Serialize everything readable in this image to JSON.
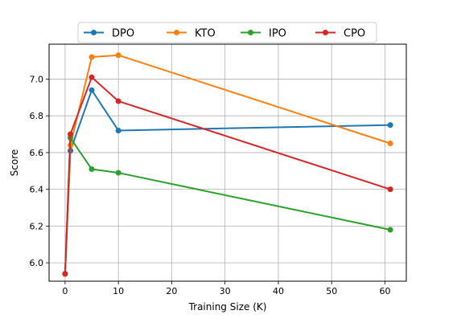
{
  "chart_data": {
    "type": "line",
    "xlabel": "Training Size (K)",
    "ylabel": "Score",
    "xlim": [
      -3,
      64
    ],
    "ylim": [
      5.9,
      7.19
    ],
    "xticks": [
      0,
      10,
      20,
      30,
      40,
      50,
      60
    ],
    "yticks": [
      6.0,
      6.2,
      6.4,
      6.6,
      6.8,
      7.0
    ],
    "xtick_labels": [
      "0",
      "10",
      "20",
      "30",
      "40",
      "50",
      "60"
    ],
    "ytick_labels": [
      "6.0",
      "6.2",
      "6.4",
      "6.6",
      "6.8",
      "7.0"
    ],
    "grid": true,
    "legend_position": "top-center",
    "x": [
      0,
      1,
      5,
      10,
      61
    ],
    "series": [
      {
        "name": "DPO",
        "color": "#1f77b4",
        "values": [
          5.94,
          6.61,
          6.94,
          6.72,
          6.75
        ]
      },
      {
        "name": "KTO",
        "color": "#ff7f0e",
        "values": [
          5.94,
          6.64,
          7.12,
          7.13,
          6.65
        ]
      },
      {
        "name": "IPO",
        "color": "#2ca02c",
        "values": [
          5.94,
          6.68,
          6.51,
          6.49,
          6.18
        ]
      },
      {
        "name": "CPO",
        "color": "#d62728",
        "values": [
          5.94,
          6.7,
          7.01,
          6.88,
          6.4
        ]
      }
    ]
  }
}
